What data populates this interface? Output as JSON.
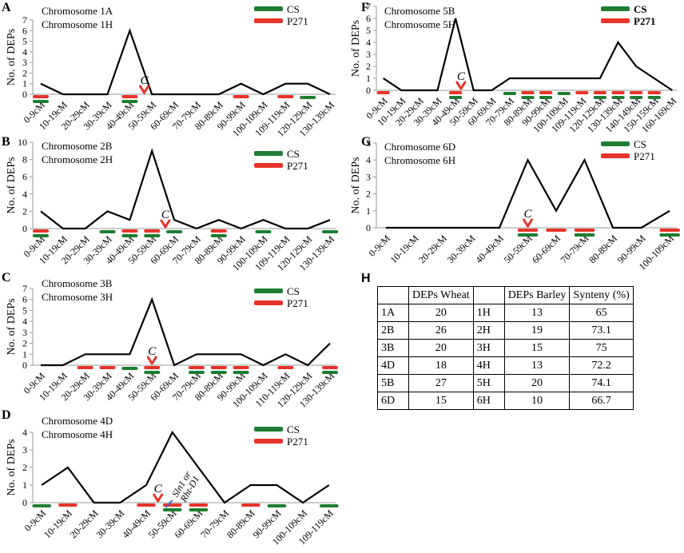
{
  "colors": {
    "cs": "#1e7d32",
    "p271": "#e8332a",
    "arrow": "#e8332a",
    "line": "#000000",
    "gene_marker": "#3a6bc4"
  },
  "legend": {
    "cs": "CS",
    "p271": "P271"
  },
  "y_label": "No. of DEPs",
  "centromere_label": "C",
  "chart_data": [
    {
      "panel": "A",
      "type": "line",
      "chr1": "Chromosome 1A",
      "chr2": "Chromosome 1H",
      "categories": [
        "0-9cM",
        "10-19cM",
        "20-29cM",
        "30-39cM",
        "40-49cM",
        "50-59cM",
        "60-69cM",
        "70-79cM",
        "80-89cM",
        "90-99cM",
        "100-109cM",
        "109-119cM",
        "120-129cM",
        "130-139cM"
      ],
      "values": [
        1,
        0,
        0,
        0,
        6,
        0,
        0,
        0,
        0,
        1,
        0,
        1,
        1,
        0
      ],
      "ylim": [
        0,
        7
      ],
      "yticks": [
        0,
        1,
        2,
        3,
        4,
        5,
        6,
        7
      ],
      "cs_bins": [
        0,
        4,
        12
      ],
      "p271_bins": [
        0,
        4,
        9,
        11
      ],
      "centromere_index": 4.65
    },
    {
      "panel": "B",
      "type": "line",
      "chr1": "Chromosome 2B",
      "chr2": "Chromosome 2H",
      "categories": [
        "0-9cM",
        "10-19cM",
        "20-29cM",
        "30-39cM",
        "40-49cM",
        "50-59cM",
        "60-69cM",
        "70-79cM",
        "80-89cM",
        "90-99cM",
        "100-109cM",
        "109-119cM",
        "120-129cM",
        "130-139cM"
      ],
      "values": [
        2,
        0,
        0,
        2,
        1,
        9,
        1,
        0,
        1,
        0,
        1,
        0,
        0,
        1
      ],
      "ylim": [
        0,
        10
      ],
      "yticks": [
        0,
        2,
        4,
        6,
        8,
        10
      ],
      "cs_bins": [
        0,
        3,
        4,
        5,
        6,
        8,
        10,
        13
      ],
      "p271_bins": [
        0,
        4,
        5,
        8
      ],
      "centromere_index": 5.6
    },
    {
      "panel": "C",
      "type": "line",
      "chr1": "Chromosome 3B",
      "chr2": "Chromosome 3H",
      "categories": [
        "0-9cM",
        "10-19cM",
        "20-29cM",
        "30-39cM",
        "40-49cM",
        "50-59cM",
        "60-69cM",
        "70-79cM",
        "80-89cM",
        "90-99cM",
        "100-109cM",
        "110-119cM",
        "120-129cM",
        "130-139cM"
      ],
      "values": [
        0,
        0,
        1,
        1,
        1,
        6,
        0,
        1,
        1,
        1,
        0,
        1,
        0,
        2
      ],
      "ylim": [
        0,
        7
      ],
      "yticks": [
        0,
        1,
        2,
        3,
        4,
        5,
        6,
        7
      ],
      "cs_bins": [
        4,
        5,
        7,
        8,
        9,
        13
      ],
      "p271_bins": [
        2,
        3,
        5,
        7,
        8,
        9,
        11,
        13
      ],
      "centromere_index": 5.0
    },
    {
      "panel": "D",
      "type": "line",
      "chr1": "Chromosome 4D",
      "chr2": "Chromosome 4H",
      "categories": [
        "0-9cM",
        "10-19cM",
        "20-29cM",
        "30-39cM",
        "40-49cM",
        "50-59cM",
        "60-69cM",
        "70-79cM",
        "80-89cM",
        "90-99cM",
        "100-109cM",
        "109-119cM"
      ],
      "values": [
        1,
        2,
        0,
        0,
        1,
        4,
        2,
        0,
        1,
        1,
        0,
        1
      ],
      "ylim": [
        0,
        4
      ],
      "yticks": [
        0,
        1,
        2,
        3,
        4
      ],
      "cs_bins": [
        0,
        5,
        6,
        9,
        11
      ],
      "p271_bins": [
        1,
        4,
        5,
        6,
        8
      ],
      "centromere_index": 4.45,
      "gene_label_1": "Sln1 or",
      "gene_label_2": "Rht-D1"
    },
    {
      "panel": "F",
      "type": "line",
      "chr1": "Chromosome 5B",
      "chr2": "Chromosome 5H",
      "categories": [
        "0-9cM",
        "10-19cM",
        "20-29cM",
        "30-39cM",
        "40-49cM",
        "50-59cM",
        "60-69cM",
        "70-79cM",
        "80-89cM",
        "90-99cM",
        "100-109cM",
        "109-119cM",
        "120-129cM",
        "130-139cM",
        "140-149cM",
        "150-159cM",
        "160-169cM"
      ],
      "values": [
        1,
        0,
        0,
        0,
        6,
        0,
        0,
        1,
        1,
        1,
        1,
        1,
        1,
        4,
        2,
        1,
        0
      ],
      "ylim": [
        0,
        7
      ],
      "yticks": [
        0,
        1,
        2,
        3,
        4,
        5,
        6,
        7
      ],
      "cs_bins": [
        4,
        7,
        8,
        9,
        10,
        12,
        13,
        14,
        15
      ],
      "p271_bins": [
        0,
        4,
        8,
        9,
        11,
        12,
        13,
        14,
        15
      ],
      "centromere_index": 4.3
    },
    {
      "panel": "G",
      "type": "line",
      "chr1": "Chromosome 6D",
      "chr2": "Chromosome 6H",
      "categories": [
        "0-9cM",
        "10-19cM",
        "20-29cM",
        "30-39cM",
        "40-49cM",
        "50-59cM",
        "60-69cM",
        "70-79cM",
        "80-89cM",
        "90-99cM",
        "100-109cM"
      ],
      "values": [
        0,
        0,
        0,
        0,
        0,
        4,
        1,
        4,
        0,
        0,
        1
      ],
      "ylim": [
        0,
        5
      ],
      "yticks": [
        0,
        1,
        2,
        3,
        4,
        5
      ],
      "cs_bins": [
        5,
        7,
        10
      ],
      "p271_bins": [
        5,
        6,
        7,
        10
      ],
      "centromere_index": 5.0
    }
  ],
  "table": {
    "panel": "H",
    "headers": [
      "",
      "DEPs Wheat",
      "",
      "DEPs Barley",
      "Synteny (%)"
    ],
    "rows": [
      [
        "1A",
        "20",
        "1H",
        "13",
        "65"
      ],
      [
        "2B",
        "26",
        "2H",
        "19",
        "73.1"
      ],
      [
        "3B",
        "20",
        "3H",
        "15",
        "75"
      ],
      [
        "4D",
        "18",
        "4H",
        "13",
        "72.2"
      ],
      [
        "5B",
        "27",
        "5H",
        "20",
        "74.1"
      ],
      [
        "6D",
        "15",
        "6H",
        "10",
        "66.7"
      ]
    ]
  }
}
